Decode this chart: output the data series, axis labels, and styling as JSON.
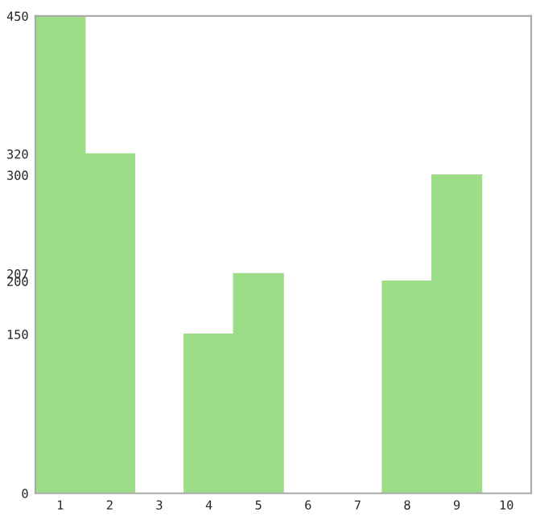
{
  "chart_data": {
    "type": "bar",
    "categories": [
      "1",
      "2",
      "3",
      "4",
      "5",
      "6",
      "7",
      "8",
      "9",
      "10"
    ],
    "values": [
      450,
      320,
      0,
      150,
      207,
      0,
      0,
      200,
      300,
      0
    ],
    "color": "#9edd88",
    "ylim": [
      0,
      450
    ],
    "yticks": [
      0,
      150,
      200,
      207,
      300,
      320,
      450
    ],
    "grid": false
  }
}
